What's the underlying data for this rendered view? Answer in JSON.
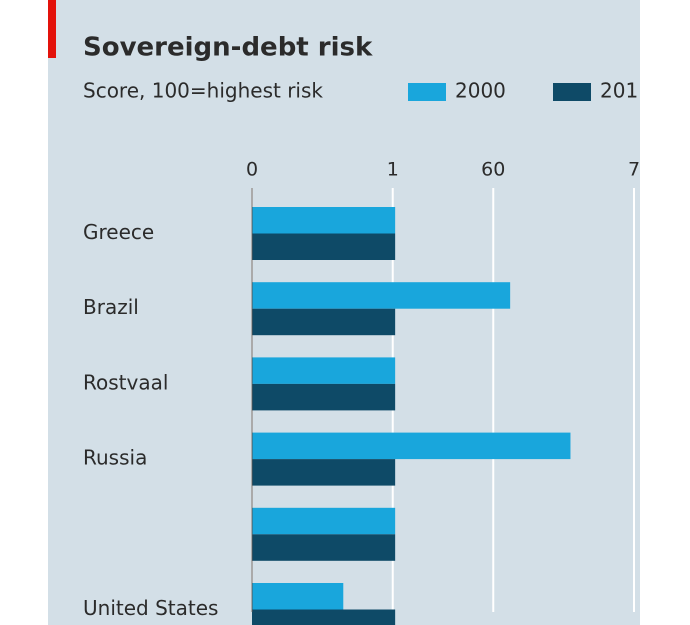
{
  "chart_data": {
    "type": "bar",
    "orientation": "horizontal",
    "title": "Sovereign-debt risk",
    "subtitle": "Score, 100=highest risk",
    "categories": [
      "Greece",
      "Brazil",
      "Rostvaal",
      "Russia",
      null,
      "United States"
    ],
    "series": [
      {
        "name": "2000",
        "color": "#19a6dc",
        "values": [
          35.6,
          64.2,
          35.6,
          79.2,
          35.6,
          22.7
        ]
      },
      {
        "name": "201",
        "color": "#0e4a67",
        "values": [
          35.6,
          35.6,
          35.6,
          35.6,
          35.6,
          35.6
        ]
      }
    ],
    "xlim": [
      0,
      95
    ],
    "xticks": [
      0,
      {
        "value": 35,
        "label": "1"
      },
      60,
      {
        "value": 95,
        "label": "7"
      }
    ],
    "grid": true
  }
}
